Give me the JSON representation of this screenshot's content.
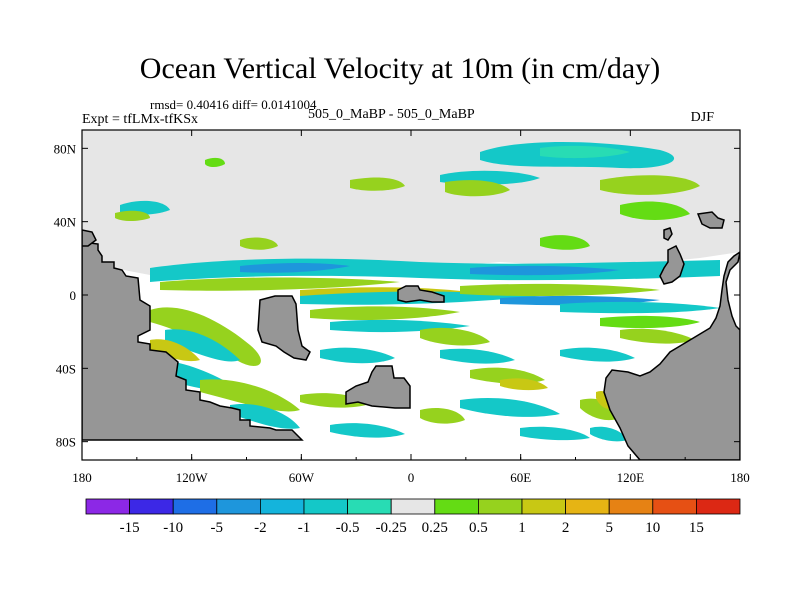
{
  "header": {
    "title": "Ocean Vertical Velocity at 10m (in cm/day)",
    "stats": "rmsd= 0.40416  diff= 0.0141004",
    "expt": "Expt = tfLMx-tfKSx",
    "model": "505_0_MaBP - 505_0_MaBP",
    "season": "DJF"
  },
  "chart_data": {
    "type": "heatmap",
    "title": "Ocean Vertical Velocity at 10m (in cm/day)",
    "subtitle": "rmsd= 0.40416  diff= 0.0141004",
    "xlabel": "",
    "ylabel": "",
    "xlim": [
      -180,
      180
    ],
    "ylim": [
      -90,
      90
    ],
    "x_ticks": [
      {
        "value": -180,
        "label": "180"
      },
      {
        "value": -120,
        "label": "120W"
      },
      {
        "value": -60,
        "label": "60W"
      },
      {
        "value": 0,
        "label": "0"
      },
      {
        "value": 60,
        "label": "60E"
      },
      {
        "value": 120,
        "label": "120E"
      },
      {
        "value": 180,
        "label": "180"
      }
    ],
    "y_ticks": [
      {
        "value": 80,
        "label": "80N"
      },
      {
        "value": 40,
        "label": "40N"
      },
      {
        "value": 0,
        "label": "0"
      },
      {
        "value": -40,
        "label": "40S"
      },
      {
        "value": -80,
        "label": "80S"
      }
    ],
    "colorbar": {
      "labels": [
        "-15",
        "-10",
        "-5",
        "-2",
        "-1",
        "-0.5",
        "-0.25",
        "0.25",
        "0.5",
        "1",
        "2",
        "5",
        "10",
        "15"
      ],
      "colors": [
        "#8c28e6",
        "#3c28e6",
        "#1e6ee6",
        "#1e96dc",
        "#14b4dc",
        "#14c8c8",
        "#28dcb4",
        "#e6e6e6",
        "#64dc14",
        "#96d21e",
        "#c8c814",
        "#e6b414",
        "#e68214",
        "#e65014",
        "#dc2814"
      ]
    },
    "colors": {
      "land": "#969696",
      "no_data": "#ffffff",
      "near_zero": "#e6e6e6"
    }
  }
}
